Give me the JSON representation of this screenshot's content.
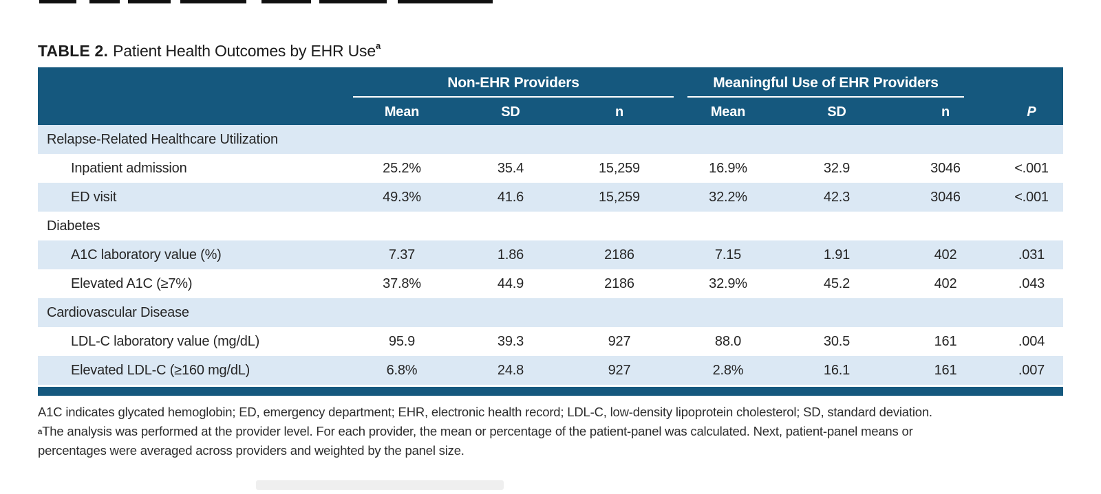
{
  "title": {
    "label": "TABLE 2.",
    "text": "Patient Health Outcomes by EHR Use",
    "superscript": "a"
  },
  "colors": {
    "header_blue": "#15587e",
    "row_alt_blue": "#dbe8f4",
    "text": "#262626"
  },
  "table": {
    "groups": [
      {
        "label": "Non-EHR Providers",
        "span": 3
      },
      {
        "label": "Meaningful Use of EHR Providers",
        "span": 3
      }
    ],
    "sub_columns": [
      "Mean",
      "SD",
      "n",
      "Mean",
      "SD",
      "n",
      "P"
    ],
    "rows": [
      {
        "type": "section",
        "label": "Relapse-Related Healthcare Utilization",
        "values": [
          "",
          "",
          "",
          "",
          "",
          "",
          ""
        ]
      },
      {
        "type": "data",
        "label": "Inpatient admission",
        "values": [
          "25.2%",
          "35.4",
          "15,259",
          "16.9%",
          "32.9",
          "3046",
          "<.001"
        ]
      },
      {
        "type": "data",
        "label": "ED visit",
        "values": [
          "49.3%",
          "41.6",
          "15,259",
          "32.2%",
          "42.3",
          "3046",
          "<.001"
        ]
      },
      {
        "type": "section",
        "label": "Diabetes",
        "values": [
          "",
          "",
          "",
          "",
          "",
          "",
          ""
        ]
      },
      {
        "type": "data",
        "label": "A1C laboratory value (%)",
        "values": [
          "7.37",
          "1.86",
          "2186",
          "7.15",
          "1.91",
          "402",
          ".031"
        ]
      },
      {
        "type": "data",
        "label": "Elevated A1C (≥7%)",
        "values": [
          "37.8%",
          "44.9",
          "2186",
          "32.9%",
          "45.2",
          "402",
          ".043"
        ]
      },
      {
        "type": "section",
        "label": "Cardiovascular Disease",
        "values": [
          "",
          "",
          "",
          "",
          "",
          "",
          ""
        ]
      },
      {
        "type": "data",
        "label": "LDL-C laboratory value (mg/dL)",
        "values": [
          "95.9",
          "39.3",
          "927",
          "88.0",
          "30.5",
          "161",
          ".004"
        ]
      },
      {
        "type": "data",
        "label": "Elevated LDL-C (≥160 mg/dL)",
        "values": [
          "6.8%",
          "24.8",
          "927",
          "2.8%",
          "16.1",
          "161",
          ".007"
        ]
      }
    ]
  },
  "footnotes": {
    "abbrev": "A1C indicates glycated hemoglobin; ED, emergency department; EHR, electronic health record; LDL-C, low-density lipoprotein cholesterol; SD, standard deviation.",
    "note_sup": "a",
    "note_line1": "The analysis was performed at the provider level. For each provider, the mean or percentage of the patient-panel was calculated. Next, patient-panel means or",
    "note_line2": "percentages were averaged across providers and weighted by the panel size."
  }
}
